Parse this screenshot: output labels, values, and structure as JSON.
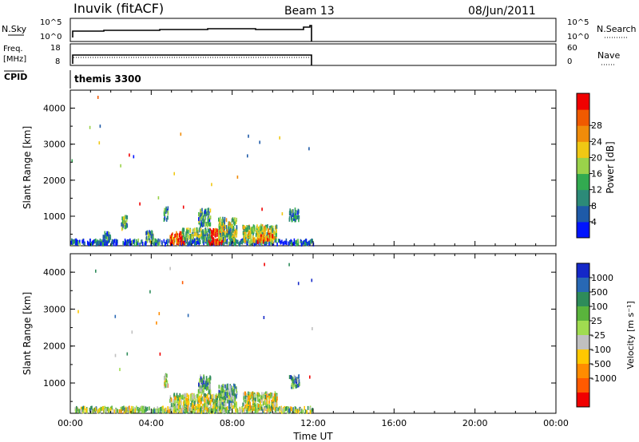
{
  "header": {
    "station": "Inuvik (fitACF)",
    "beam": "Beam 13",
    "date": "08/Jun/2011"
  },
  "summary": {
    "nsky_label": "N.Sky",
    "nsky_ticks": [
      "10^5",
      "10^0"
    ],
    "nsearch_label": "N.Search",
    "freq_label": [
      "Freq.",
      "[MHz]"
    ],
    "freq_ticks": [
      "18",
      "8"
    ],
    "nave_label": "Nave",
    "nave_ticks": [
      "60",
      "0"
    ],
    "cpid_label": "CPID",
    "cpid_value": "themis 3300"
  },
  "colors": {
    "power_scale": [
      "#0014ff",
      "#1e5aa8",
      "#2c8a78",
      "#32aa50",
      "#9ad24a",
      "#f0c814",
      "#f08c0a",
      "#f05a00",
      "#f00000"
    ],
    "velocity_scale": [
      "#1428c8",
      "#2868b4",
      "#2e8c5a",
      "#5ab43c",
      "#a0dc50",
      "#c0c0c0",
      "#ffc800",
      "#ff8c00",
      "#ff5a00",
      "#f00000"
    ]
  },
  "chart_data": [
    {
      "type": "heatmap",
      "name": "power",
      "xlabel": "",
      "ylabel": "Slant Range [km]",
      "xlim": [
        "00:00",
        "24:00"
      ],
      "ylim": [
        180,
        4500
      ],
      "yticks": [
        1000,
        2000,
        3000,
        4000
      ],
      "xticks": [
        "00:00",
        "04:00",
        "08:00",
        "12:00",
        "16:00",
        "20:00",
        "00:00"
      ],
      "data_extent_hours": [
        0,
        12
      ],
      "colorbar": {
        "label": "Power [dB]",
        "ticks": [
          4,
          8,
          12,
          16,
          20,
          24,
          28
        ]
      },
      "scatter_regions": [
        {
          "t0": 0.0,
          "t1": 12.0,
          "r0": 180,
          "r1": 300,
          "level": 0.2
        },
        {
          "t0": 4.9,
          "t1": 5.6,
          "r0": 200,
          "r1": 500,
          "level": 0.9
        },
        {
          "t0": 6.8,
          "t1": 7.5,
          "r0": 200,
          "r1": 600,
          "level": 0.95
        },
        {
          "t0": 5.5,
          "t1": 6.9,
          "r0": 300,
          "r1": 600,
          "level": 0.4
        },
        {
          "t0": 8.5,
          "t1": 10.2,
          "r0": 250,
          "r1": 700,
          "level": 0.5
        },
        {
          "t0": 9.2,
          "t1": 10.0,
          "r0": 250,
          "r1": 450,
          "level": 0.8
        },
        {
          "t0": 6.3,
          "t1": 6.9,
          "r0": 700,
          "r1": 1150,
          "level": 0.3
        },
        {
          "t0": 4.6,
          "t1": 4.8,
          "r0": 850,
          "r1": 1200,
          "level": 0.3
        },
        {
          "t0": 7.3,
          "t1": 8.2,
          "r0": 300,
          "r1": 900,
          "level": 0.45
        },
        {
          "t0": 3.7,
          "t1": 4.1,
          "r0": 250,
          "r1": 550,
          "level": 0.35
        },
        {
          "t0": 1.6,
          "t1": 2.0,
          "r0": 250,
          "r1": 500,
          "level": 0.3
        },
        {
          "t0": 2.5,
          "t1": 2.8,
          "r0": 600,
          "r1": 950,
          "level": 0.4
        },
        {
          "t0": 10.8,
          "t1": 11.3,
          "r0": 850,
          "r1": 1150,
          "level": 0.25
        }
      ]
    },
    {
      "type": "heatmap",
      "name": "velocity",
      "xlabel": "Time UT",
      "ylabel": "Slant Range [km]",
      "xlim": [
        "00:00",
        "24:00"
      ],
      "ylim": [
        180,
        4500
      ],
      "yticks": [
        1000,
        2000,
        3000,
        4000
      ],
      "xticks": [
        "00:00",
        "04:00",
        "08:00",
        "12:00",
        "16:00",
        "20:00",
        "00:00"
      ],
      "data_extent_hours": [
        0,
        12
      ],
      "colorbar": {
        "label": "Velocity [m s⁻¹]",
        "ticks": [
          1000,
          500,
          100,
          25,
          -25,
          -100,
          -500,
          -1000
        ]
      },
      "scatter_regions": [
        {
          "t0": 0.0,
          "t1": 12.0,
          "r0": 180,
          "r1": 300,
          "level": 0.45
        },
        {
          "t0": 4.9,
          "t1": 7.6,
          "r0": 200,
          "r1": 650,
          "level": 0.5
        },
        {
          "t0": 8.5,
          "t1": 10.2,
          "r0": 250,
          "r1": 700,
          "level": 0.5
        },
        {
          "t0": 6.3,
          "t1": 6.9,
          "r0": 700,
          "r1": 1150,
          "level": 0.3
        },
        {
          "t0": 4.6,
          "t1": 4.8,
          "r0": 850,
          "r1": 1200,
          "level": 0.55
        },
        {
          "t0": 7.3,
          "t1": 8.2,
          "r0": 300,
          "r1": 900,
          "level": 0.35
        },
        {
          "t0": 10.8,
          "t1": 11.3,
          "r0": 850,
          "r1": 1150,
          "level": 0.3
        }
      ]
    }
  ]
}
